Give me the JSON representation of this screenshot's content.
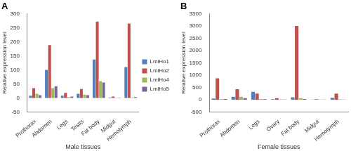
{
  "chart_data": [
    {
      "type": "bar",
      "title": "A",
      "x_label": "Male tissues",
      "y_label": "Relative expression level",
      "categories": [
        "Prothorax",
        "Abdomen",
        "Legs",
        "Testis",
        "Fat body",
        "Midgut",
        "Hemolymph"
      ],
      "series": [
        {
          "name": "LmiHo1",
          "color": "#4f81bd",
          "values": [
            8,
            100,
            8,
            15,
            137,
            2,
            110
          ]
        },
        {
          "name": "LmiHo2",
          "color": "#c0504d",
          "values": [
            35,
            188,
            18,
            32,
            272,
            5,
            265
          ]
        },
        {
          "name": "LmiHo4",
          "color": "#9bbb59",
          "values": [
            15,
            35,
            3,
            12,
            60,
            1,
            2
          ]
        },
        {
          "name": "LmiHo5",
          "color": "#8064a2",
          "values": [
            10,
            42,
            5,
            10,
            55,
            1,
            3
          ]
        }
      ],
      "ylim": [
        -50,
        300
      ],
      "yticks": [
        -50,
        0,
        50,
        100,
        150,
        200,
        250,
        300
      ],
      "grid": false,
      "legend": "right"
    },
    {
      "type": "bar",
      "title": "B",
      "x_label": "Female tissues",
      "y_label": "Relative expression level",
      "categories": [
        "Prothorax",
        "Abdomen",
        "Legs",
        "Ovary",
        "Fat body",
        "Midgut",
        "Hemolymph"
      ],
      "series": [
        {
          "name": "LmiHo1",
          "color": "#4f81bd",
          "values": [
            50,
            120,
            320,
            20,
            100,
            5,
            80
          ]
        },
        {
          "name": "LmiHo2",
          "color": "#c0504d",
          "values": [
            870,
            430,
            250,
            60,
            3000,
            20,
            250
          ]
        },
        {
          "name": "LmiHo4",
          "color": "#9bbb59",
          "values": [
            20,
            120,
            30,
            10,
            60,
            2,
            10
          ]
        },
        {
          "name": "LmiHo5",
          "color": "#8064a2",
          "values": [
            30,
            60,
            20,
            5,
            30,
            2,
            5
          ]
        }
      ],
      "ylim": [
        -500,
        3500
      ],
      "yticks": [
        -500,
        0,
        500,
        1000,
        1500,
        2000,
        2500,
        3000,
        3500
      ],
      "grid": false
    }
  ]
}
